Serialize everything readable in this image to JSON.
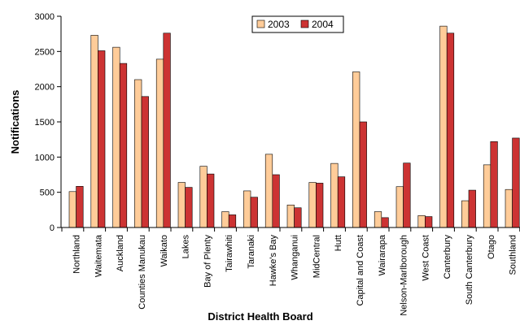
{
  "chart_data": {
    "type": "bar",
    "title": "",
    "xlabel": "District Health Board",
    "ylabel": "Notifications",
    "ylim": [
      0,
      3000
    ],
    "yticks": [
      0,
      500,
      1000,
      1500,
      2000,
      2500,
      3000
    ],
    "grid": false,
    "legend_position": "top-center",
    "categories": [
      "Northland",
      "Waitemata",
      "Auckland",
      "Counties Manukau",
      "Waikato",
      "Lakes",
      "Bay of Plenty",
      "Tairawhiti",
      "Taranaki",
      "Hawke's Bay",
      "Whanganui",
      "MidCentral",
      "Hutt",
      "Capital and Coast",
      "Wairarapa",
      "Nelson-Marlborough",
      "West Coast",
      "Canterbury",
      "South Canterbury",
      "Otago",
      "Southland"
    ],
    "series": [
      {
        "name": "2003",
        "color": "#ffcc99",
        "values": [
          510,
          2730,
          2560,
          2100,
          2390,
          640,
          870,
          225,
          520,
          1040,
          320,
          640,
          910,
          2210,
          225,
          580,
          170,
          2860,
          380,
          890,
          540
        ]
      },
      {
        "name": "2004",
        "color": "#cc3333",
        "values": [
          585,
          2510,
          2330,
          1860,
          2760,
          570,
          760,
          180,
          430,
          750,
          280,
          630,
          720,
          1500,
          140,
          915,
          155,
          2760,
          530,
          1220,
          1270
        ]
      }
    ]
  }
}
